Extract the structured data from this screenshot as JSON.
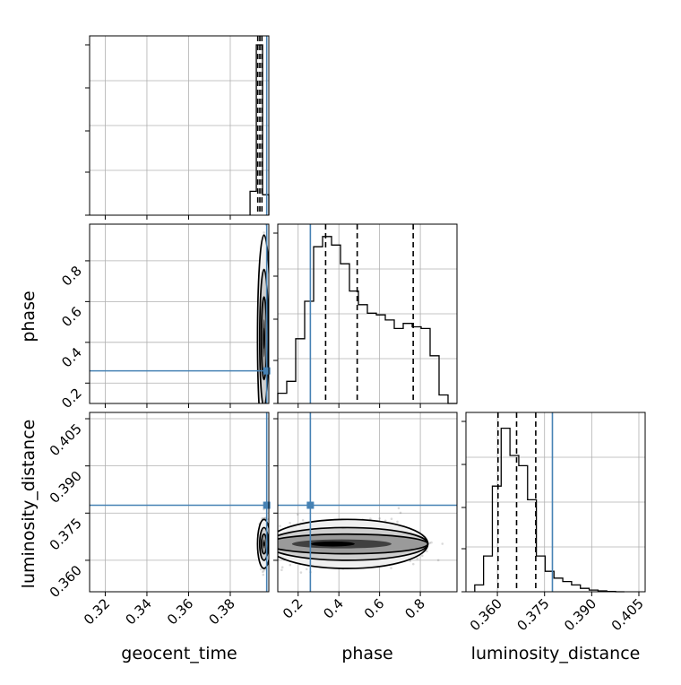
{
  "chart_data": {
    "type": "corner",
    "parameters": [
      "geocent_time",
      "phase",
      "luminosity_distance"
    ],
    "truths": {
      "geocent_time": 0.3975,
      "phase": 0.26,
      "luminosity_distance": 0.3775
    },
    "ranges": {
      "geocent_time": [
        0.3125,
        0.3985
      ],
      "phase": [
        0.1,
        0.98
      ],
      "luminosity_distance": [
        0.35,
        0.407
      ]
    },
    "ticks": {
      "geocent_time": [
        "0.32",
        "0.34",
        "0.36",
        "0.38"
      ],
      "phase": [
        "0.2",
        "0.4",
        "0.6",
        "0.8"
      ],
      "luminosity_distance": [
        "0.360",
        "0.375",
        "0.390",
        "0.405"
      ]
    },
    "tick_values": {
      "geocent_time": [
        0.32,
        0.34,
        0.36,
        0.38
      ],
      "phase": [
        0.2,
        0.4,
        0.6,
        0.8
      ],
      "luminosity_distance": [
        0.36,
        0.375,
        0.39,
        0.405
      ]
    },
    "histograms": {
      "geocent_time": {
        "bin_edges": [
          0.3895,
          0.3925,
          0.3955,
          0.3985
        ],
        "counts": [
          0.14,
          1.0,
          0.12
        ],
        "quantiles": [
          0.3932,
          0.3942,
          0.3952
        ]
      },
      "phase": {
        "bin_edges": [
          0.1,
          0.144,
          0.188,
          0.232,
          0.276,
          0.32,
          0.364,
          0.408,
          0.452,
          0.496,
          0.54,
          0.584,
          0.628,
          0.672,
          0.716,
          0.76,
          0.804,
          0.848,
          0.892,
          0.936,
          0.98
        ],
        "counts": [
          0.06,
          0.13,
          0.38,
          0.6,
          0.92,
          0.98,
          0.93,
          0.82,
          0.66,
          0.58,
          0.53,
          0.52,
          0.49,
          0.44,
          0.47,
          0.45,
          0.44,
          0.28,
          0.05,
          0.0
        ],
        "quantiles": [
          0.335,
          0.49,
          0.765
        ]
      },
      "luminosity_distance": {
        "bin_edges": [
          0.3528,
          0.3556,
          0.3584,
          0.3612,
          0.364,
          0.3668,
          0.3696,
          0.3724,
          0.3752,
          0.378,
          0.3808,
          0.3836,
          0.3864,
          0.3892,
          0.392,
          0.3948,
          0.3976,
          0.4004
        ],
        "counts": [
          0.04,
          0.21,
          0.62,
          0.96,
          0.8,
          0.74,
          0.54,
          0.21,
          0.12,
          0.08,
          0.06,
          0.04,
          0.02,
          0.01,
          0.005,
          0.002,
          0.0
        ],
        "quantiles": [
          0.3602,
          0.3661,
          0.3722
        ]
      }
    },
    "density_2d": {
      "phase_vs_geocent_time": {
        "mode": [
          0.3962,
          0.42
        ],
        "spread": [
          0.0008,
          0.13
        ]
      },
      "luminosity_distance_vs_geocent_time": {
        "mode": [
          0.3962,
          0.3652
        ],
        "spread": [
          0.0008,
          0.002
        ]
      },
      "luminosity_distance_vs_phase": {
        "mode": [
          0.37,
          0.3652
        ],
        "spread": [
          0.18,
          0.002
        ]
      }
    },
    "colors": {
      "truth": "#4682b4",
      "hist": "#000000",
      "contour": "#000000",
      "grid": "#b0b0b0"
    }
  }
}
